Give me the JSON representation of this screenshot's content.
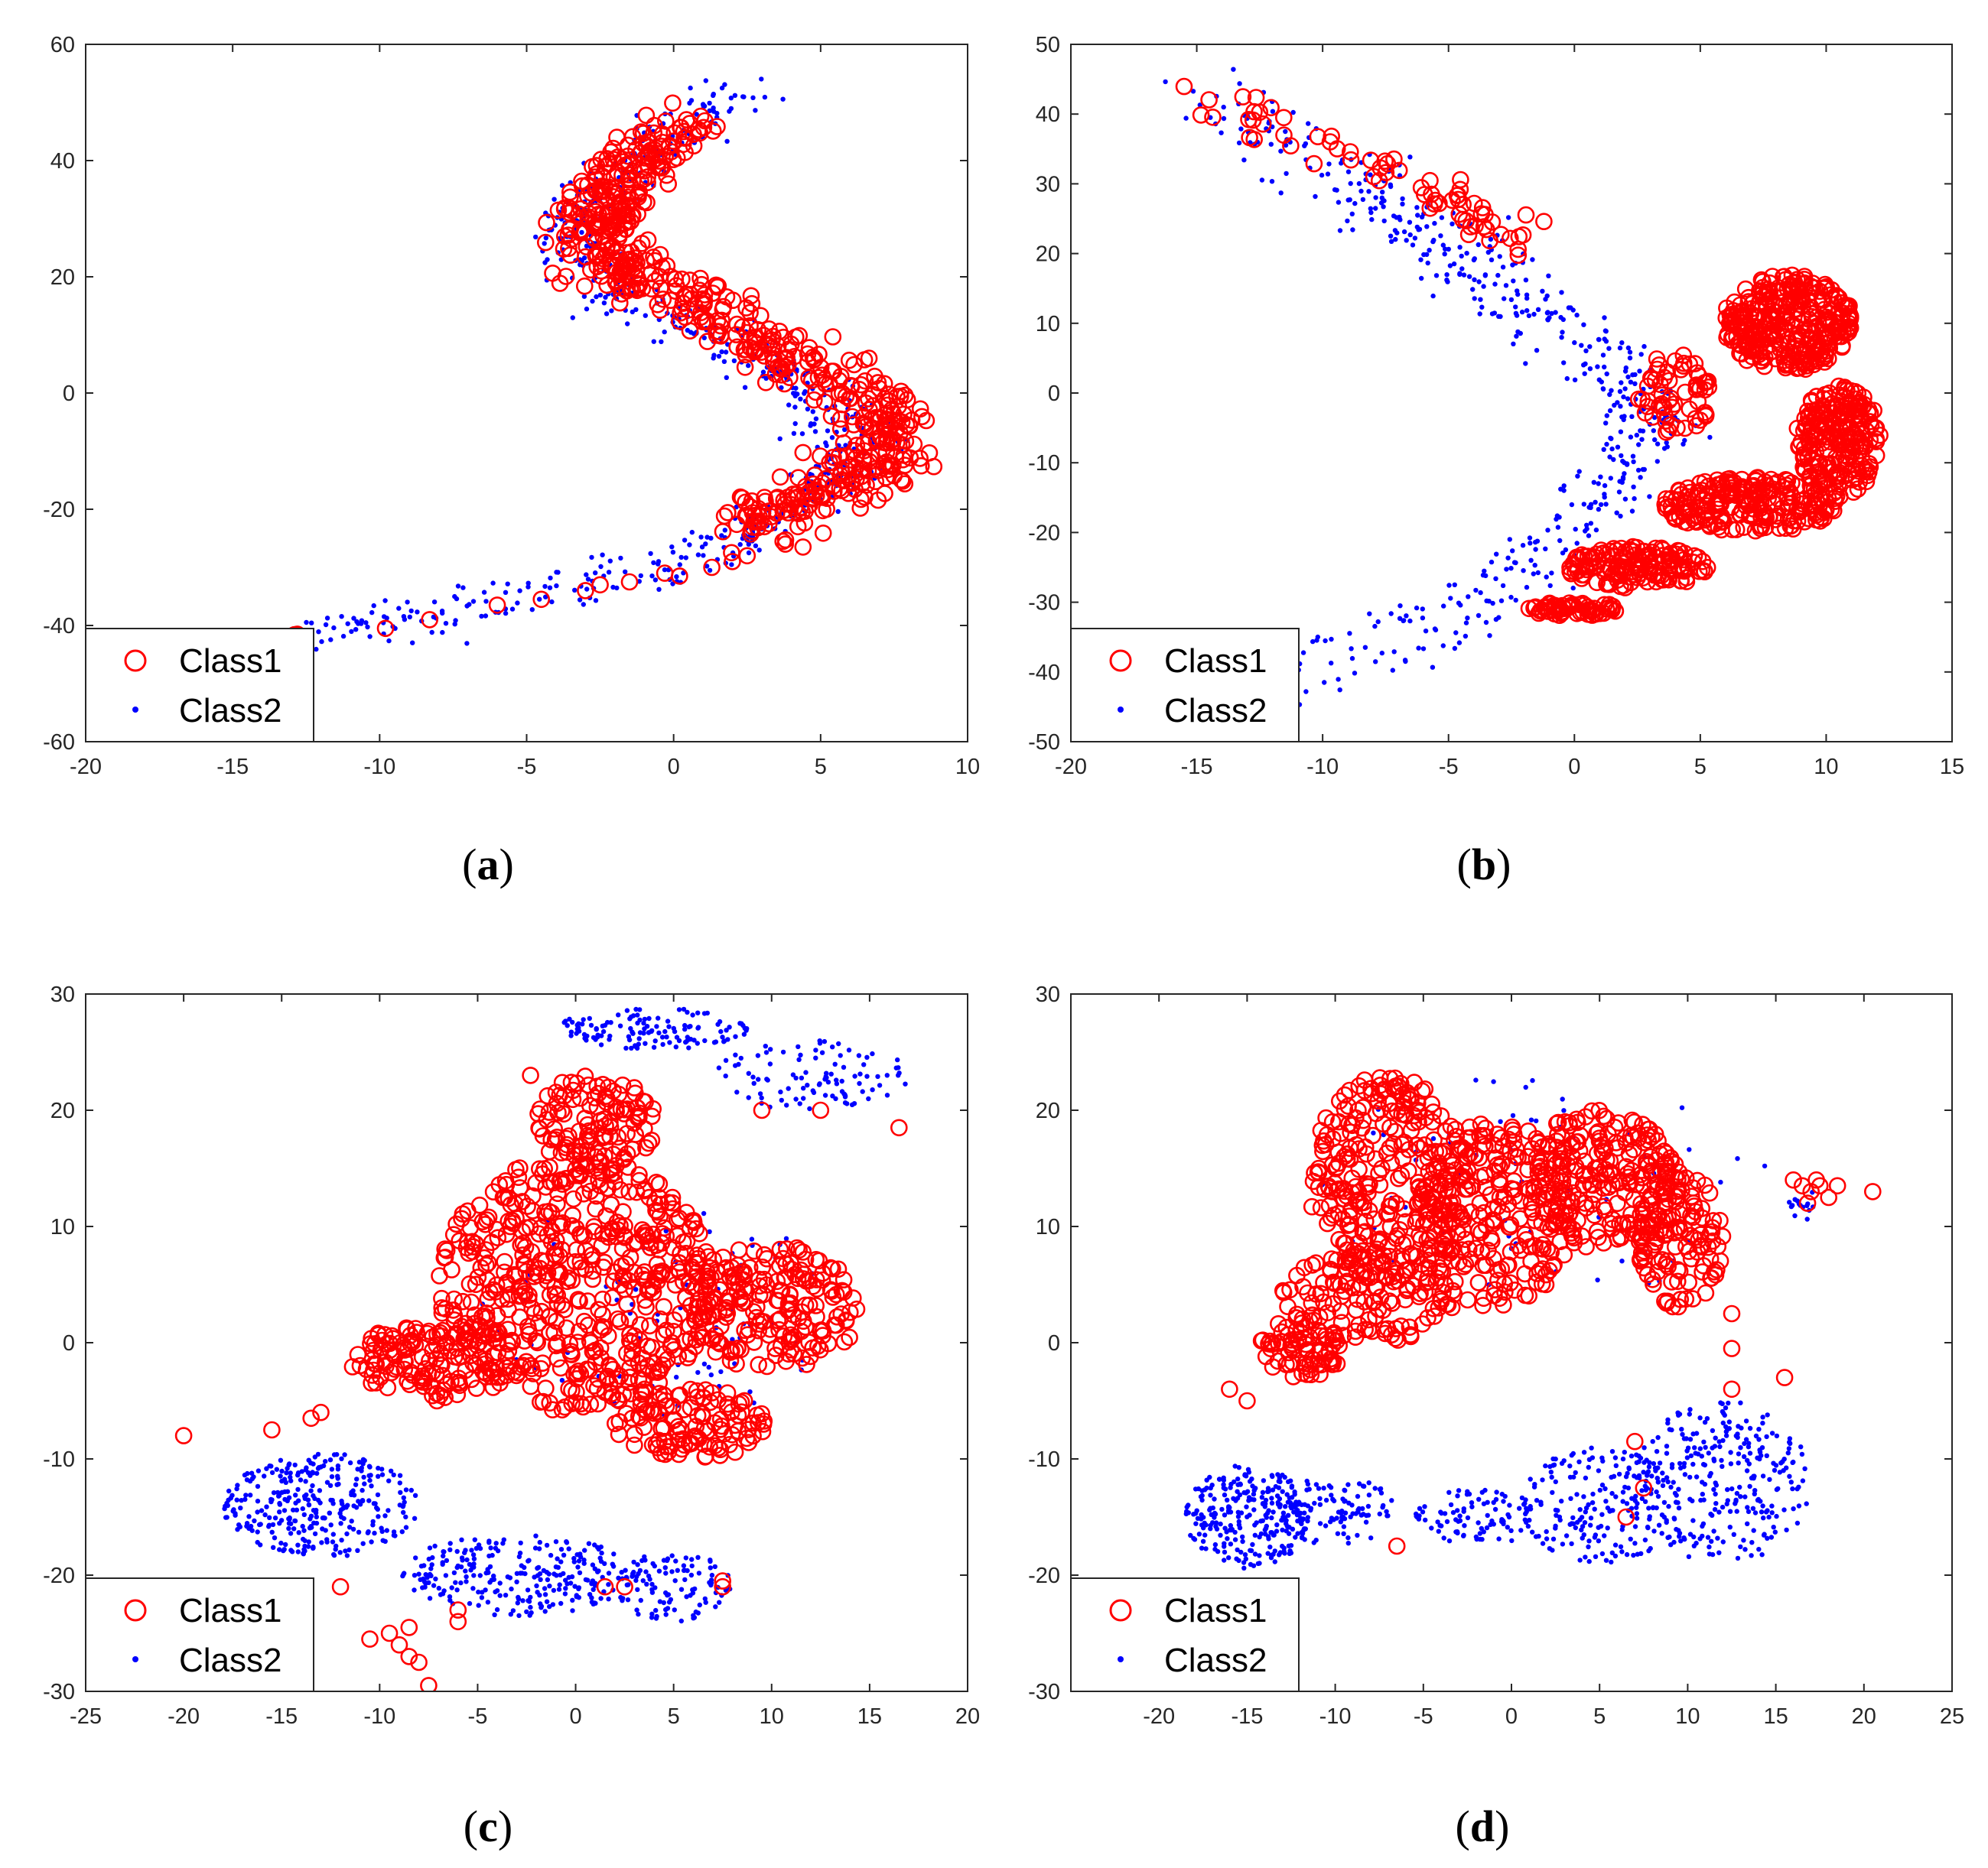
{
  "colors": {
    "class1": "#ff0000",
    "class2": "#0000ff",
    "axis": "#262626"
  },
  "chart_data": [
    {
      "type": "scatter",
      "label": "a",
      "xlim": [
        -20,
        10
      ],
      "ylim": [
        -60,
        60
      ],
      "xticks": [
        "-20",
        "-15",
        "-10",
        "-5",
        "0",
        "5",
        "10"
      ],
      "yticks": [
        "-60",
        "-40",
        "-20",
        "0",
        "20",
        "40",
        "60"
      ],
      "legend": [
        "Class1",
        "Class2"
      ],
      "legend_position": "bottom-left",
      "class1_path": [
        [
          0.8,
          46
        ],
        [
          -0.8,
          42
        ],
        [
          -2.2,
          35
        ],
        [
          -2.8,
          29
        ],
        [
          -2.2,
          23
        ],
        [
          -0.5,
          18
        ],
        [
          1.5,
          13
        ],
        [
          3.2,
          8
        ],
        [
          5,
          3
        ],
        [
          6.8,
          -2
        ],
        [
          7.6,
          -7
        ],
        [
          7,
          -12
        ],
        [
          5.3,
          -16
        ],
        [
          3.5,
          -20
        ],
        [
          2.5,
          -23
        ]
      ],
      "class2_path": [
        [
          2.4,
          52
        ],
        [
          0.8,
          48
        ],
        [
          -1.2,
          41
        ],
        [
          -3,
          33
        ],
        [
          -3.7,
          27
        ],
        [
          -3,
          21
        ],
        [
          -1,
          15
        ],
        [
          1.4,
          9
        ],
        [
          3.6,
          4
        ],
        [
          5.4,
          -2
        ],
        [
          6.2,
          -8
        ],
        [
          5.5,
          -14
        ],
        [
          3.8,
          -20
        ],
        [
          2.3,
          -25
        ],
        [
          0.3,
          -29
        ],
        [
          -3,
          -33
        ],
        [
          -7,
          -37
        ],
        [
          -11,
          -40
        ],
        [
          -12.5,
          -41.5
        ]
      ],
      "class1_sparse": [
        [
          3.8,
          -26
        ],
        [
          2.5,
          -28
        ],
        [
          1.3,
          -30
        ],
        [
          0.2,
          -31.5
        ],
        [
          -1.5,
          -32.5
        ],
        [
          -3,
          -34
        ],
        [
          -4.5,
          -35.5
        ],
        [
          -6,
          -36.5
        ],
        [
          -8.3,
          -39
        ],
        [
          -9.8,
          -40.5
        ],
        [
          -12.8,
          -41.5
        ],
        [
          -12.9,
          -41.6
        ],
        [
          4.4,
          -26.5
        ],
        [
          2,
          -29
        ],
        [
          -0.3,
          -31
        ],
        [
          -2.5,
          -33
        ],
        [
          8.7,
          -10.3
        ]
      ],
      "class1_count": 650,
      "class1_spread": [
        0.7,
        2.4
      ],
      "class2_count": 600,
      "class2_spread": [
        0.7,
        1.8
      ]
    },
    {
      "type": "scatter",
      "label": "b",
      "xlim": [
        -20,
        15
      ],
      "ylim": [
        -50,
        50
      ],
      "xticks": [
        "-20",
        "-15",
        "-10",
        "-5",
        "0",
        "5",
        "10",
        "15"
      ],
      "yticks": [
        "-50",
        "-40",
        "-30",
        "-20",
        "-10",
        "0",
        "10",
        "20",
        "30",
        "40",
        "50"
      ],
      "legend": [
        "Class1",
        "Class2"
      ],
      "legend_position": "bottom-left",
      "class2_path": [
        [
          -14.5,
          41
        ],
        [
          -12,
          37
        ],
        [
          -9,
          31
        ],
        [
          -6,
          23
        ],
        [
          -3,
          16
        ],
        [
          -0.5,
          9
        ],
        [
          1.5,
          4
        ],
        [
          3,
          -3
        ],
        [
          2,
          -12
        ],
        [
          0,
          -20
        ],
        [
          -2,
          -26
        ],
        [
          -5,
          -32
        ],
        [
          -8,
          -35
        ],
        [
          -10.5,
          -38
        ],
        [
          -11.5,
          -39
        ]
      ],
      "class1_path": [
        [
          -15,
          41.5
        ],
        [
          -13,
          40
        ],
        [
          -11,
          37
        ],
        [
          -8,
          34
        ],
        [
          -5,
          27
        ],
        [
          -3,
          23
        ],
        [
          -1.5,
          22
        ]
      ],
      "class1_blobs": [
        {
          "cx": 8.5,
          "cy": 10,
          "rx": 2.6,
          "ry": 7,
          "n": 320
        },
        {
          "cx": 10.5,
          "cy": -7,
          "rx": 1.7,
          "ry": 8,
          "n": 220
        },
        {
          "cx": 7,
          "cy": -16,
          "rx": 3.5,
          "ry": 4,
          "n": 220
        },
        {
          "cx": 2.5,
          "cy": -25,
          "rx": 2.8,
          "ry": 3,
          "n": 150
        },
        {
          "cx": 0,
          "cy": -31,
          "rx": 2,
          "ry": 1,
          "n": 60
        },
        {
          "cx": 4,
          "cy": 0,
          "rx": 1.5,
          "ry": 6,
          "n": 60
        }
      ],
      "class1_count": 70,
      "class1_spread": [
        0.6,
        1.6
      ],
      "class2_count": 520,
      "class2_spread": [
        0.8,
        2.6
      ]
    },
    {
      "type": "scatter",
      "label": "c",
      "xlim": [
        -25,
        20
      ],
      "ylim": [
        -30,
        30
      ],
      "xticks": [
        "-25",
        "-20",
        "-15",
        "-10",
        "-5",
        "0",
        "5",
        "10",
        "15",
        "20"
      ],
      "yticks": [
        "-30",
        "-20",
        "-10",
        "0",
        "10",
        "20",
        "30"
      ],
      "legend": [
        "Class1",
        "Class2"
      ],
      "legend_position": "bottom-left",
      "class1_blobs": [
        {
          "cx": 1,
          "cy": 19,
          "rx": 3.2,
          "ry": 4,
          "n": 110
        },
        {
          "cx": 0,
          "cy": 5,
          "rx": 7,
          "ry": 11,
          "n": 520
        },
        {
          "cx": 10,
          "cy": 3,
          "rx": 4.5,
          "ry": 5.5,
          "n": 200
        },
        {
          "cx": 6,
          "cy": -7,
          "rx": 4,
          "ry": 3,
          "n": 110
        },
        {
          "cx": -7,
          "cy": -1.5,
          "rx": 4.5,
          "ry": 3.5,
          "n": 150
        }
      ],
      "class1_extra": [
        [
          -20,
          -8
        ],
        [
          -15.5,
          -7.5
        ],
        [
          -13.5,
          -6.5
        ],
        [
          -13,
          -6
        ],
        [
          -12,
          -21
        ],
        [
          -10.5,
          -25.5
        ],
        [
          -9.5,
          -25
        ],
        [
          -9,
          -26
        ],
        [
          -8.5,
          -27
        ],
        [
          -8,
          -27.5
        ],
        [
          -8.5,
          -24.5
        ],
        [
          -7.5,
          -29.5
        ],
        [
          -6,
          -24
        ],
        [
          -6,
          -23
        ],
        [
          1.5,
          -21
        ],
        [
          2.5,
          -21
        ],
        [
          7.5,
          -20.5
        ],
        [
          7.5,
          -21
        ],
        [
          9.5,
          20
        ],
        [
          12.5,
          20
        ],
        [
          16.5,
          18.5
        ],
        [
          -2.3,
          23
        ]
      ],
      "class2_blobs": [
        {
          "cx": -13,
          "cy": -14,
          "rx": 5,
          "ry": 4.5,
          "n": 320
        },
        {
          "cx": -3,
          "cy": -20,
          "rx": 6,
          "ry": 3.5,
          "n": 260
        },
        {
          "cx": 5,
          "cy": -21,
          "rx": 3,
          "ry": 3,
          "n": 100
        },
        {
          "cx": 4,
          "cy": 27,
          "rx": 5,
          "ry": 1.8,
          "n": 130
        },
        {
          "cx": 12,
          "cy": 23,
          "rx": 5,
          "ry": 3,
          "n": 100
        },
        {
          "cx": 4,
          "cy": 3,
          "rx": 9,
          "ry": 10,
          "n": 70
        }
      ]
    },
    {
      "type": "scatter",
      "label": "d",
      "xlim": [
        -25,
        25
      ],
      "ylim": [
        -30,
        30
      ],
      "xticks": [
        "-20",
        "-15",
        "-10",
        "-5",
        "0",
        "5",
        "10",
        "15",
        "20",
        "25"
      ],
      "yticks": [
        "-30",
        "-20",
        "-10",
        "0",
        "10",
        "20",
        "30"
      ],
      "legend": [
        "Class1",
        "Class2"
      ],
      "legend_position": "bottom-left",
      "class1_blobs": [
        {
          "cx": -12,
          "cy": -0.5,
          "rx": 2.5,
          "ry": 2.5,
          "n": 70
        },
        {
          "cx": -7,
          "cy": 14,
          "rx": 4.5,
          "ry": 9,
          "n": 280
        },
        {
          "cx": -1,
          "cy": 11,
          "rx": 4.5,
          "ry": 8,
          "n": 240
        },
        {
          "cx": 5,
          "cy": 14,
          "rx": 4.5,
          "ry": 6,
          "n": 220
        },
        {
          "cx": 9.5,
          "cy": 9,
          "rx": 2.5,
          "ry": 6,
          "n": 120
        },
        {
          "cx": -8,
          "cy": 4,
          "rx": 5,
          "ry": 4,
          "n": 120
        }
      ],
      "class1_extra": [
        [
          16,
          14
        ],
        [
          16.5,
          13.5
        ],
        [
          17,
          13
        ],
        [
          17.5,
          13.5
        ],
        [
          18,
          12.5
        ],
        [
          18.5,
          13.5
        ],
        [
          16.8,
          12
        ],
        [
          17.3,
          14
        ],
        [
          20.5,
          13
        ],
        [
          12.5,
          -4
        ],
        [
          15.5,
          -3
        ],
        [
          7,
          -8.5
        ],
        [
          7.5,
          -12.5
        ],
        [
          6.5,
          -15
        ],
        [
          -6.5,
          -17.5
        ],
        [
          12.5,
          2.5
        ],
        [
          12.5,
          -0.5
        ],
        [
          -15,
          -5
        ],
        [
          -16,
          -4
        ]
      ],
      "class2_blobs": [
        {
          "cx": -15,
          "cy": -15,
          "rx": 3.5,
          "ry": 4.5,
          "n": 260
        },
        {
          "cx": -10,
          "cy": -14.5,
          "rx": 3.5,
          "ry": 3,
          "n": 110
        },
        {
          "cx": -2,
          "cy": -15,
          "rx": 3.5,
          "ry": 2.5,
          "n": 90
        },
        {
          "cx": 5,
          "cy": -14,
          "rx": 4.5,
          "ry": 5,
          "n": 200
        },
        {
          "cx": 12,
          "cy": -12,
          "rx": 5,
          "ry": 7,
          "n": 280
        },
        {
          "cx": 2,
          "cy": 14,
          "rx": 14,
          "ry": 10,
          "n": 60
        },
        {
          "cx": 16.5,
          "cy": 12,
          "rx": 0.8,
          "ry": 1.5,
          "n": 15
        }
      ]
    }
  ]
}
